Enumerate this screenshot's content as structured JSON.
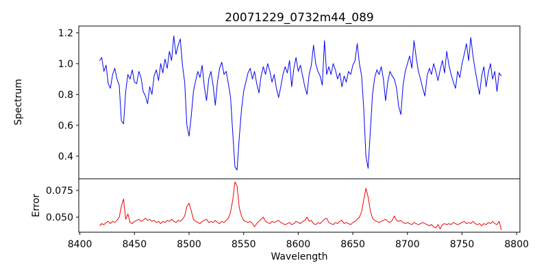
{
  "title": "20071229_0732m44_089",
  "colors": {
    "background": "#ffffff",
    "axis": "#000000",
    "spectrum_line": "#0000ee",
    "error_line": "#ee0000"
  },
  "x_axis": {
    "label": "Wavelength",
    "range": [
      8399,
      8803
    ],
    "tick_values": [
      8400,
      8450,
      8500,
      8550,
      8600,
      8650,
      8700,
      8750,
      8800
    ],
    "tick_labels": [
      "8400",
      "8450",
      "8500",
      "8550",
      "8600",
      "8650",
      "8700",
      "8750",
      "8800"
    ]
  },
  "chart_data": {
    "type": "line",
    "title": "20071229_0732m44_089",
    "xlabel": "Wavelength",
    "x_start": 8418,
    "x_step": 2,
    "grid": false,
    "legend": "none",
    "panels": [
      {
        "name": "spectrum",
        "ylabel": "Spectrum",
        "line_color": "#0000ee",
        "ylim": [
          0.253,
          1.244
        ],
        "ytick_values": [
          0.4,
          0.6,
          0.8,
          1.0,
          1.2
        ],
        "ytick_labels": [
          "0.4",
          "0.6",
          "0.8",
          "1.0",
          "1.2"
        ],
        "features": "absorption lines near 8440, 8500, 8543 (deepest, ~0.31), 8663 (~0.32)",
        "values": [
          1.02,
          1.04,
          0.95,
          0.99,
          0.87,
          0.84,
          0.93,
          0.97,
          0.9,
          0.86,
          0.63,
          0.61,
          0.82,
          0.93,
          0.9,
          0.96,
          0.88,
          0.87,
          0.95,
          0.91,
          0.82,
          0.79,
          0.74,
          0.85,
          0.8,
          0.92,
          0.96,
          0.89,
          1.0,
          0.94,
          1.03,
          0.97,
          1.08,
          1.02,
          1.18,
          1.06,
          1.12,
          1.16,
          0.99,
          0.88,
          0.6,
          0.53,
          0.66,
          0.82,
          0.89,
          0.95,
          0.91,
          0.99,
          0.85,
          0.76,
          0.9,
          0.95,
          0.86,
          0.73,
          0.88,
          0.97,
          1.01,
          0.93,
          0.95,
          0.87,
          0.78,
          0.55,
          0.33,
          0.31,
          0.52,
          0.7,
          0.82,
          0.88,
          0.94,
          0.97,
          0.9,
          0.95,
          0.87,
          0.81,
          0.92,
          0.98,
          0.93,
          1.0,
          0.95,
          0.88,
          0.93,
          0.84,
          0.78,
          0.85,
          0.93,
          0.98,
          0.94,
          1.02,
          0.85,
          0.97,
          1.04,
          0.95,
          0.99,
          0.92,
          0.85,
          0.8,
          0.93,
          0.99,
          1.12,
          1.0,
          0.95,
          0.92,
          0.86,
          1.15,
          0.93,
          0.98,
          0.93,
          1.0,
          0.96,
          0.9,
          0.94,
          0.85,
          0.92,
          0.88,
          0.95,
          0.93,
          0.99,
          1.02,
          1.13,
          1.0,
          0.92,
          0.71,
          0.4,
          0.32,
          0.56,
          0.8,
          0.91,
          0.96,
          0.93,
          0.98,
          0.9,
          0.76,
          0.88,
          0.95,
          0.92,
          0.9,
          0.84,
          0.72,
          0.67,
          0.86,
          0.95,
          1.0,
          1.05,
          0.97,
          1.15,
          1.04,
          0.95,
          0.9,
          0.84,
          0.79,
          0.92,
          0.97,
          0.93,
          1.0,
          0.95,
          0.89,
          0.96,
          1.02,
          0.94,
          1.08,
          0.99,
          0.93,
          0.88,
          0.84,
          0.95,
          0.91,
          1.0,
          1.06,
          1.13,
          1.02,
          1.17,
          1.05,
          0.96,
          0.88,
          0.8,
          0.92,
          0.98,
          0.85,
          0.94,
          1.0,
          0.9,
          0.95,
          0.82,
          0.94,
          0.92
        ]
      },
      {
        "name": "error",
        "ylabel": "Error",
        "line_color": "#ee0000",
        "ylim": [
          0.0359,
          0.0859
        ],
        "ytick_values": [
          0.05,
          0.075
        ],
        "ytick_labels": [
          "0.050",
          "0.075"
        ],
        "features": "baseline ~0.045 with spikes at 8440 (~0.067), 8500 (~0.063), 8543 (~0.083), 8663 (~0.077)",
        "values": [
          0.042,
          0.044,
          0.043,
          0.045,
          0.046,
          0.044,
          0.046,
          0.045,
          0.047,
          0.05,
          0.06,
          0.067,
          0.048,
          0.053,
          0.045,
          0.044,
          0.046,
          0.047,
          0.048,
          0.046,
          0.047,
          0.049,
          0.047,
          0.048,
          0.046,
          0.047,
          0.045,
          0.046,
          0.044,
          0.046,
          0.045,
          0.047,
          0.046,
          0.048,
          0.046,
          0.045,
          0.047,
          0.046,
          0.048,
          0.051,
          0.06,
          0.063,
          0.056,
          0.048,
          0.046,
          0.045,
          0.044,
          0.046,
          0.047,
          0.048,
          0.045,
          0.046,
          0.045,
          0.047,
          0.045,
          0.044,
          0.046,
          0.045,
          0.047,
          0.049,
          0.055,
          0.066,
          0.083,
          0.079,
          0.059,
          0.051,
          0.047,
          0.046,
          0.045,
          0.046,
          0.044,
          0.041,
          0.044,
          0.046,
          0.048,
          0.05,
          0.046,
          0.045,
          0.044,
          0.046,
          0.045,
          0.046,
          0.047,
          0.045,
          0.044,
          0.043,
          0.044,
          0.045,
          0.043,
          0.044,
          0.046,
          0.045,
          0.044,
          0.046,
          0.047,
          0.05,
          0.046,
          0.047,
          0.044,
          0.043,
          0.045,
          0.044,
          0.046,
          0.048,
          0.049,
          0.045,
          0.044,
          0.043,
          0.045,
          0.044,
          0.046,
          0.047,
          0.044,
          0.045,
          0.044,
          0.043,
          0.045,
          0.046,
          0.048,
          0.05,
          0.055,
          0.066,
          0.077,
          0.069,
          0.056,
          0.049,
          0.047,
          0.046,
          0.045,
          0.046,
          0.047,
          0.048,
          0.046,
          0.045,
          0.047,
          0.051,
          0.047,
          0.046,
          0.047,
          0.045,
          0.044,
          0.045,
          0.044,
          0.043,
          0.045,
          0.044,
          0.043,
          0.044,
          0.045,
          0.044,
          0.043,
          0.042,
          0.043,
          0.041,
          0.04,
          0.043,
          0.039,
          0.043,
          0.044,
          0.043,
          0.044,
          0.043,
          0.045,
          0.044,
          0.043,
          0.044,
          0.045,
          0.046,
          0.044,
          0.045,
          0.044,
          0.046,
          0.044,
          0.043,
          0.044,
          0.042,
          0.044,
          0.043,
          0.045,
          0.044,
          0.046,
          0.044,
          0.043,
          0.046,
          0.038
        ]
      }
    ]
  }
}
